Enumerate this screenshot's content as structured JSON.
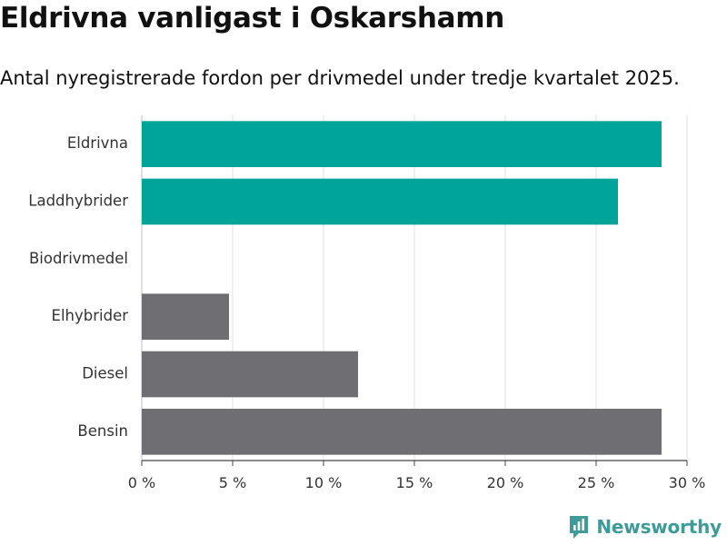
{
  "header": {
    "title": "Eldrivna vanligast i Oskarshamn",
    "subtitle": "Antal nyregistrerade fordon per drivmedel under tredje kvartalet 2025."
  },
  "branding": {
    "logo_text": "Newsworthy",
    "logo_color": "#3e9b97"
  },
  "chart_data": {
    "type": "bar",
    "orientation": "horizontal",
    "categories": [
      "Eldrivna",
      "Laddhybrider",
      "Biodrivmedel",
      "Elhybrider",
      "Diesel",
      "Bensin"
    ],
    "values": [
      28.6,
      26.2,
      0,
      4.8,
      11.9,
      28.6
    ],
    "colors": [
      "#00a49a",
      "#00a49a",
      "#6f6e72",
      "#6f6e72",
      "#6f6e72",
      "#6f6e72"
    ],
    "xlim": [
      0,
      30
    ],
    "xticks": [
      0,
      5,
      10,
      15,
      20,
      25,
      30
    ],
    "xtick_labels": [
      "0 %",
      "5 %",
      "10 %",
      "15 %",
      "20 %",
      "25 %",
      "30 %"
    ],
    "grid": true,
    "legend": "none"
  }
}
